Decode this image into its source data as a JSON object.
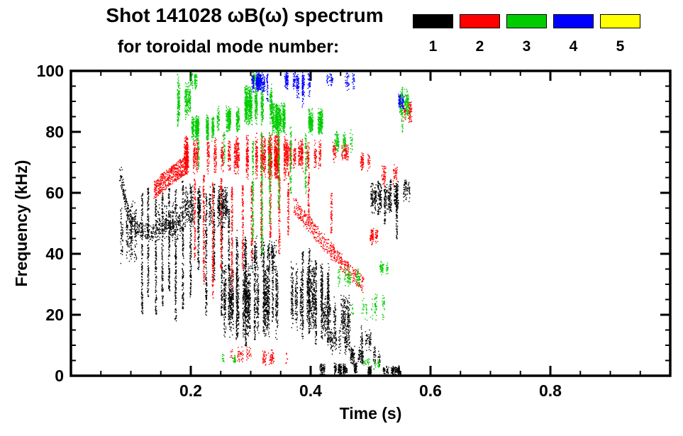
{
  "title": {
    "line1": "Shot 141028 ωB(ω) spectrum",
    "line2": "for toroidal mode number:"
  },
  "chart_data": {
    "type": "scatter",
    "title": "Shot 141028 ωB(ω) spectrum for toroidal mode number: 1 2 3 4 5",
    "xlabel": "Time (s)",
    "ylabel": "Frequency (kHz)",
    "xlim": [
      0.0,
      1.0
    ],
    "ylim": [
      0,
      100
    ],
    "grid": false,
    "legend_position": "top-right-above-plot",
    "x_major_ticks": [
      0.2,
      0.4,
      0.6,
      0.8
    ],
    "x_tick_labels": [
      "0.2",
      "0.4",
      "0.6",
      "0.8"
    ],
    "x_minor_step": 0.05,
    "y_major_ticks": [
      0,
      20,
      40,
      60,
      80,
      100
    ],
    "y_tick_labels": [
      "0",
      "20",
      "40",
      "60",
      "80",
      "100"
    ],
    "y_minor_step": 5,
    "series": [
      {
        "name": "1",
        "mode": 1,
        "color": "#000000",
        "clouds": [
          [
            0.078,
            0.112,
            36,
            58,
            260
          ],
          [
            0.13,
            0.185,
            44,
            57,
            220
          ],
          [
            0.19,
            0.265,
            48,
            63,
            550
          ],
          [
            0.255,
            0.345,
            12,
            38,
            1500
          ],
          [
            0.27,
            0.34,
            33,
            46,
            250
          ],
          [
            0.365,
            0.435,
            14,
            38,
            800
          ],
          [
            0.4,
            0.465,
            12,
            27,
            350
          ],
          [
            0.43,
            0.5,
            7,
            17,
            260
          ],
          [
            0.465,
            0.525,
            3,
            10,
            200
          ],
          [
            0.41,
            0.475,
            0.3,
            4.5,
            320
          ],
          [
            0.495,
            0.565,
            0.3,
            3.5,
            260
          ],
          [
            0.493,
            0.545,
            53,
            64,
            380
          ],
          [
            0.548,
            0.568,
            57,
            66,
            70
          ]
        ],
        "vlines": [
          [
            0.118,
            20,
            60
          ],
          [
            0.128,
            26,
            62
          ],
          [
            0.141,
            20,
            58
          ],
          [
            0.152,
            23,
            60
          ],
          [
            0.163,
            28,
            62
          ],
          [
            0.174,
            18,
            62
          ],
          [
            0.186,
            22,
            64
          ],
          [
            0.199,
            26,
            63
          ],
          [
            0.212,
            35,
            62
          ],
          [
            0.225,
            20,
            60
          ],
          [
            0.238,
            31,
            63
          ],
          [
            0.251,
            20,
            61
          ],
          [
            0.263,
            17,
            55
          ],
          [
            0.276,
            12,
            48
          ],
          [
            0.291,
            10,
            46
          ],
          [
            0.306,
            12,
            45
          ],
          [
            0.321,
            14,
            44
          ],
          [
            0.336,
            17,
            43
          ],
          [
            0.386,
            12,
            41
          ],
          [
            0.397,
            14,
            42
          ],
          [
            0.408,
            10,
            38
          ],
          [
            0.418,
            12,
            36
          ],
          [
            0.428,
            10,
            33
          ],
          [
            0.512,
            53,
            64
          ],
          [
            0.523,
            50,
            63
          ],
          [
            0.533,
            54,
            65
          ],
          [
            0.543,
            44,
            63
          ]
        ],
        "traces": [
          {
            "pts": [
              [
                0.082,
                67
              ],
              [
                0.09,
                57
              ],
              [
                0.1,
                51
              ],
              [
                0.115,
                48
              ],
              [
                0.135,
                47
              ],
              [
                0.155,
                50
              ],
              [
                0.17,
                48
              ]
            ],
            "n": 400,
            "spread": 2.5
          }
        ]
      },
      {
        "name": "2",
        "mode": 2,
        "color": "#ff0000",
        "clouds": [
          [
            0.19,
            0.28,
            66,
            79,
            900
          ],
          [
            0.275,
            0.36,
            64,
            80,
            1300
          ],
          [
            0.355,
            0.425,
            67,
            78,
            520
          ],
          [
            0.425,
            0.465,
            70,
            77,
            140
          ],
          [
            0.468,
            0.5,
            67,
            74,
            90
          ],
          [
            0.495,
            0.515,
            43,
            49,
            100
          ],
          [
            0.518,
            0.545,
            62,
            70,
            90
          ],
          [
            0.552,
            0.567,
            83,
            91,
            110
          ],
          [
            0.248,
            0.3,
            4,
            10,
            70
          ],
          [
            0.3,
            0.36,
            3,
            9,
            90
          ]
        ],
        "vlines": [
          [
            0.206,
            38,
            65
          ],
          [
            0.221,
            30,
            66
          ],
          [
            0.236,
            25,
            64
          ],
          [
            0.25,
            35,
            65
          ],
          [
            0.268,
            28,
            62
          ],
          [
            0.286,
            35,
            63
          ],
          [
            0.301,
            38,
            64
          ],
          [
            0.317,
            42,
            64
          ],
          [
            0.332,
            45,
            65
          ],
          [
            0.347,
            40,
            66
          ],
          [
            0.362,
            46,
            67
          ],
          [
            0.396,
            50,
            67
          ],
          [
            0.434,
            47,
            60
          ]
        ],
        "traces": [
          {
            "pts": [
              [
                0.138,
                61
              ],
              [
                0.155,
                64
              ],
              [
                0.175,
                67
              ],
              [
                0.195,
                70
              ]
            ],
            "n": 550,
            "spread": 3
          },
          {
            "pts": [
              [
                0.372,
                56
              ],
              [
                0.4,
                49
              ],
              [
                0.43,
                42
              ],
              [
                0.458,
                36
              ],
              [
                0.487,
                30
              ]
            ],
            "n": 520,
            "spread": 2.6
          }
        ]
      },
      {
        "name": "3",
        "mode": 3,
        "color": "#00cc00",
        "clouds": [
          [
            0.173,
            0.198,
            84,
            97,
            260
          ],
          [
            0.198,
            0.248,
            77,
            86,
            620
          ],
          [
            0.245,
            0.288,
            80,
            89,
            380
          ],
          [
            0.285,
            0.335,
            82,
            96,
            950
          ],
          [
            0.335,
            0.385,
            79,
            90,
            620
          ],
          [
            0.385,
            0.425,
            79,
            88,
            430
          ],
          [
            0.19,
            0.215,
            94,
            100,
            90
          ],
          [
            0.298,
            0.335,
            95,
            100,
            120
          ],
          [
            0.43,
            0.472,
            73,
            81,
            150
          ],
          [
            0.44,
            0.482,
            29,
            36,
            120
          ],
          [
            0.468,
            0.522,
            18,
            27,
            100
          ],
          [
            0.498,
            0.528,
            33,
            38,
            60
          ],
          [
            0.545,
            0.567,
            84,
            95,
            160
          ],
          [
            0.253,
            0.272,
            4,
            8,
            35
          ],
          [
            0.488,
            0.518,
            2,
            6,
            45
          ]
        ],
        "vlines": [
          [
            0.178,
            82,
            100
          ],
          [
            0.212,
            68,
            78
          ],
          [
            0.255,
            70,
            80
          ],
          [
            0.303,
            45,
            78
          ],
          [
            0.318,
            40,
            80
          ],
          [
            0.331,
            50,
            80
          ],
          [
            0.346,
            55,
            82
          ],
          [
            0.366,
            60,
            82
          ],
          [
            0.391,
            60,
            80
          ],
          [
            0.552,
            80,
            95
          ]
        ],
        "traces": []
      },
      {
        "name": "4",
        "mode": 4,
        "color": "#0000ff",
        "clouds": [
          [
            0.295,
            0.335,
            93,
            100,
            330
          ],
          [
            0.335,
            0.377,
            94,
            100,
            150
          ],
          [
            0.375,
            0.397,
            90,
            100,
            130
          ],
          [
            0.418,
            0.442,
            95,
            100,
            45
          ],
          [
            0.458,
            0.476,
            93,
            100,
            55
          ],
          [
            0.545,
            0.562,
            87,
            93,
            85
          ]
        ],
        "vlines": [
          [
            0.327,
            90,
            100
          ],
          [
            0.386,
            88,
            100
          ]
        ],
        "traces": []
      },
      {
        "name": "5",
        "mode": 5,
        "color": "#ffff00",
        "clouds": [],
        "vlines": [],
        "traces": []
      }
    ]
  }
}
